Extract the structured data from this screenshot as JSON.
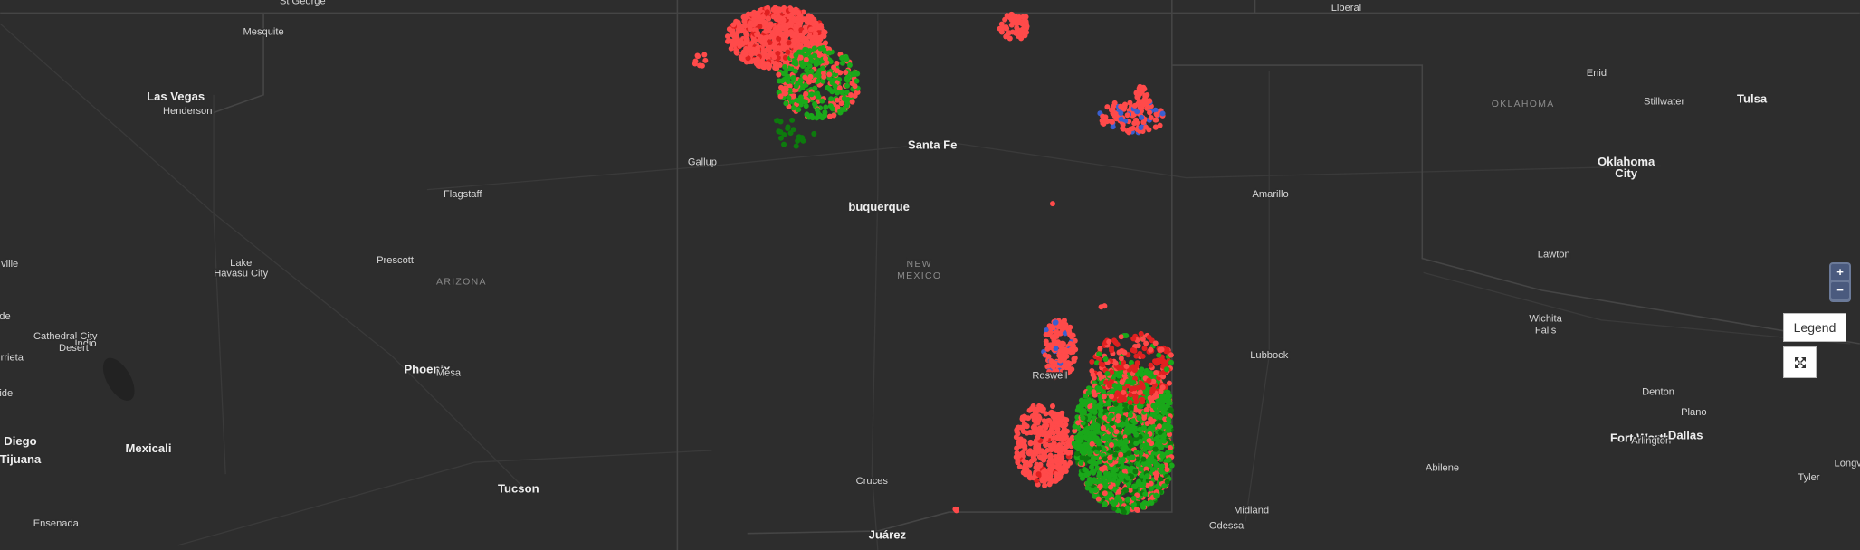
{
  "map": {
    "states": [
      "ARIZONA",
      "NEW",
      "MEXICO",
      "OKLAHOMA"
    ],
    "cities": [
      "St George",
      "Mesquite",
      "Las Vegas",
      "Henderson",
      "Flagstaff",
      "Lake",
      "Havasu City",
      "Prescott",
      "Phoenix",
      "Mesa",
      "Tucson",
      "Mexicali",
      "Diego",
      "Tijuana",
      "Ensenada",
      "Cathedral City",
      "Indio",
      "Desert",
      "ville",
      "de",
      "rrieta",
      "ide",
      "Gallup",
      "Santa Fe",
      "buquerque",
      "Roswell",
      "Cruces",
      "Juárez",
      "Liberal",
      "Enid",
      "Stillwater",
      "Tulsa",
      "Oklahoma",
      "City",
      "Amarillo",
      "Lawton",
      "Wichita",
      "Falls",
      "Lubbock",
      "Denton",
      "Plano",
      "Fort Worth",
      "Arlington",
      "Dallas",
      "Abilene",
      "Midland",
      "Odessa",
      "Tyler",
      "Longv"
    ]
  },
  "controls": {
    "zoom_in": "+",
    "zoom_out": "−",
    "legend": "Legend"
  }
}
